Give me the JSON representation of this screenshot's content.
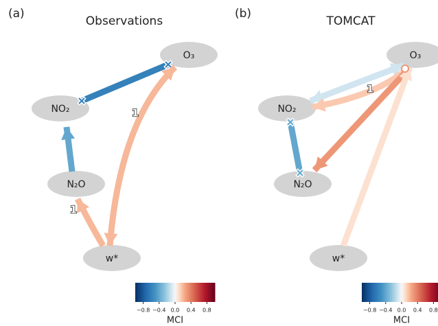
{
  "panels": [
    {
      "label": "(a)",
      "title": "Observations",
      "nodes": [
        "O₃",
        "NO₂",
        "N₂O",
        "w*"
      ],
      "edges": [
        {
          "mci": -0.6
        },
        {
          "mci": -0.4
        },
        {
          "mci": 0.2,
          "label": "1"
        },
        {
          "mci": 0.2,
          "label": "1"
        }
      ],
      "colorbar": {
        "lim": [
          -1,
          1
        ],
        "ticks": [
          {
            "value": -0.8,
            "label": "−0.8"
          },
          {
            "value": -0.4,
            "label": "−0.4"
          },
          {
            "value": 0,
            "label": "0.0"
          },
          {
            "value": 0.4,
            "label": "0.4"
          },
          {
            "value": 0.8,
            "label": "0.8"
          }
        ],
        "label": "MCI"
      }
    },
    {
      "label": "(b)",
      "title": "TOMCAT",
      "nodes": [
        "O₃",
        "NO₂",
        "N₂O",
        "w*"
      ],
      "edges": [
        {
          "mci": -0.1
        },
        {
          "mci": 0.15,
          "label": "1"
        },
        {
          "mci": 0.3
        },
        {
          "mci": -0.4
        },
        {
          "mci": 0.08
        }
      ],
      "colorbar": {
        "lim": [
          -1,
          1
        ],
        "ticks": [
          {
            "value": -0.8,
            "label": "−0.8"
          },
          {
            "value": -0.4,
            "label": "−0.4"
          },
          {
            "value": 0,
            "label": "0.0"
          },
          {
            "value": 0.4,
            "label": "0.4"
          },
          {
            "value": 0.8,
            "label": "0.8"
          }
        ],
        "label": "MCI"
      }
    }
  ]
}
